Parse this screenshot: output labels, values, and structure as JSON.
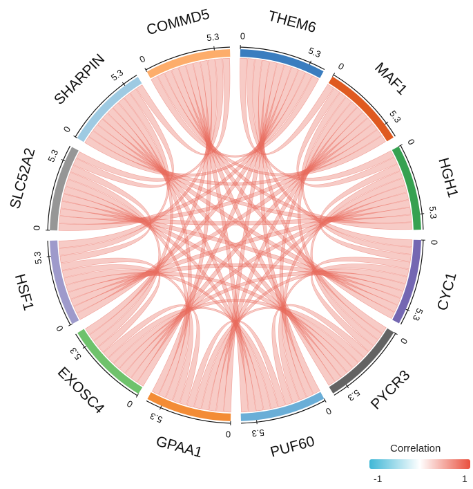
{
  "chart_data": {
    "type": "chord",
    "title": "",
    "sectors": [
      {
        "name": "THEM6",
        "color": "#3a7dbf",
        "size": 5.3
      },
      {
        "name": "MAF1",
        "color": "#df5a20",
        "size": 5.3
      },
      {
        "name": "HGH1",
        "color": "#36a150",
        "size": 5.3
      },
      {
        "name": "CYC1",
        "color": "#7467b2",
        "size": 5.3
      },
      {
        "name": "PYCR3",
        "color": "#636363",
        "size": 5.3
      },
      {
        "name": "PUF60",
        "color": "#6aaed7",
        "size": 5.3
      },
      {
        "name": "GPAA1",
        "color": "#f38c36",
        "size": 5.3
      },
      {
        "name": "EXOSC4",
        "color": "#6fc26c",
        "size": 5.3
      },
      {
        "name": "HSF1",
        "color": "#9e9acb",
        "size": 5.3
      },
      {
        "name": "SLC52A2",
        "color": "#969696",
        "size": 5.3
      },
      {
        "name": "SHARPIN",
        "color": "#9ecae2",
        "size": 5.3
      },
      {
        "name": "COMMD5",
        "color": "#fdad6b",
        "size": 5.3
      }
    ],
    "tick_labels": [
      "0",
      "5.3"
    ],
    "link_color": "#e9695c",
    "link_correlation": 1,
    "links": "all-pairs",
    "legend": {
      "title": "Correlation",
      "min_label": "-1",
      "max_label": "1",
      "min_color": "#3fb7d6",
      "mid_color": "#ffffff",
      "max_color": "#e9503e",
      "position": "bottom-right"
    }
  }
}
